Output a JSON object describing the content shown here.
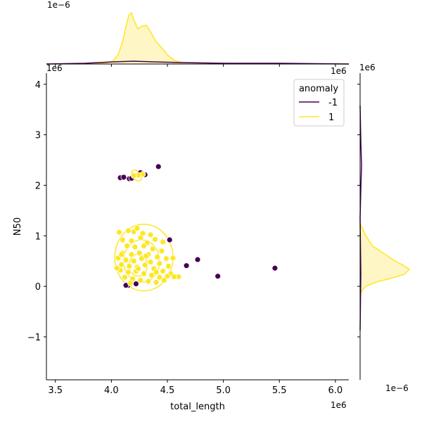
{
  "chart_data": {
    "type": "scatter",
    "subtype": "jointplot with KDE contours and marginal KDEs",
    "xlabel": "total_length",
    "ylabel": "N50",
    "x_offset_label": "1e6",
    "y_offset_label": "1e6",
    "marg_x_offset_label": "1e−6",
    "marg_y_offset_label": "1e−6",
    "xlim": [
      3.42,
      6.12
    ],
    "ylim": [
      -1.85,
      4.22
    ],
    "x_ticks": [
      3.5,
      4.0,
      4.5,
      5.0,
      5.5,
      6.0
    ],
    "x_tick_labels": [
      "3.5",
      "4.0",
      "4.5",
      "5.0",
      "5.5",
      "6.0"
    ],
    "y_ticks": [
      -1,
      0,
      1,
      2,
      3,
      4
    ],
    "y_tick_labels": [
      "−1",
      "0",
      "1",
      "2",
      "3",
      "4"
    ],
    "grid": false,
    "legend": {
      "title": "anomaly",
      "placement": "top-right",
      "entries": [
        {
          "label": "-1",
          "color": "#440154"
        },
        {
          "label": "1",
          "color": "#fde725"
        }
      ]
    },
    "colors": {
      "anomaly_neg": "#440154",
      "normal": "#fde725",
      "normal_fill": "#fef6c4"
    },
    "series": [
      {
        "name": "-1",
        "color": "#440154",
        "points": [
          [
            4.08,
            2.15
          ],
          [
            4.11,
            2.16
          ],
          [
            4.16,
            2.13
          ],
          [
            4.18,
            2.14
          ],
          [
            4.26,
            2.25
          ],
          [
            4.3,
            2.21
          ],
          [
            4.42,
            2.37
          ],
          [
            4.52,
            0.92
          ],
          [
            4.67,
            0.41
          ],
          [
            4.77,
            0.53
          ],
          [
            4.95,
            0.2
          ],
          [
            5.46,
            0.36
          ],
          [
            4.22,
            0.05
          ],
          [
            4.15,
            0.02
          ],
          [
            4.13,
            0.02
          ]
        ]
      },
      {
        "name": "1",
        "color": "#fde725",
        "points": [
          [
            4.07,
            1.07
          ],
          [
            4.15,
            1.1
          ],
          [
            4.2,
            1.08
          ],
          [
            4.23,
            1.15
          ],
          [
            4.28,
            1.05
          ],
          [
            4.35,
            1.02
          ],
          [
            4.39,
            0.93
          ],
          [
            4.46,
            0.88
          ],
          [
            4.1,
            0.92
          ],
          [
            4.18,
            0.9
          ],
          [
            4.26,
            0.96
          ],
          [
            4.32,
            0.86
          ],
          [
            4.14,
            0.8
          ],
          [
            4.21,
            0.78
          ],
          [
            4.29,
            0.8
          ],
          [
            4.37,
            0.74
          ],
          [
            4.45,
            0.7
          ],
          [
            4.1,
            0.66
          ],
          [
            4.18,
            0.63
          ],
          [
            4.25,
            0.66
          ],
          [
            4.33,
            0.63
          ],
          [
            4.41,
            0.58
          ],
          [
            4.49,
            0.55
          ],
          [
            4.55,
            0.56
          ],
          [
            4.06,
            0.56
          ],
          [
            4.13,
            0.52
          ],
          [
            4.2,
            0.5
          ],
          [
            4.27,
            0.55
          ],
          [
            4.35,
            0.48
          ],
          [
            4.43,
            0.45
          ],
          [
            4.51,
            0.4
          ],
          [
            4.09,
            0.43
          ],
          [
            4.16,
            0.4
          ],
          [
            4.23,
            0.38
          ],
          [
            4.3,
            0.42
          ],
          [
            4.38,
            0.35
          ],
          [
            4.46,
            0.3
          ],
          [
            4.53,
            0.25
          ],
          [
            4.6,
            0.19
          ],
          [
            4.08,
            0.32
          ],
          [
            4.15,
            0.28
          ],
          [
            4.22,
            0.3
          ],
          [
            4.29,
            0.25
          ],
          [
            4.36,
            0.22
          ],
          [
            4.43,
            0.18
          ],
          [
            4.5,
            0.2
          ],
          [
            4.56,
            0.19
          ],
          [
            4.12,
            0.18
          ],
          [
            4.19,
            0.15
          ],
          [
            4.26,
            0.12
          ],
          [
            4.33,
            0.1
          ],
          [
            4.4,
            0.08
          ],
          [
            4.47,
            0.12
          ],
          [
            4.17,
            0.06
          ],
          [
            4.24,
            0.35
          ],
          [
            4.31,
            0.6
          ],
          [
            4.4,
            0.28
          ],
          [
            4.05,
            0.36
          ],
          [
            4.28,
            2.22
          ],
          [
            4.24,
            2.2
          ],
          [
            4.2,
            2.19
          ],
          [
            4.09,
            0.63
          ]
        ]
      }
    ]
  }
}
